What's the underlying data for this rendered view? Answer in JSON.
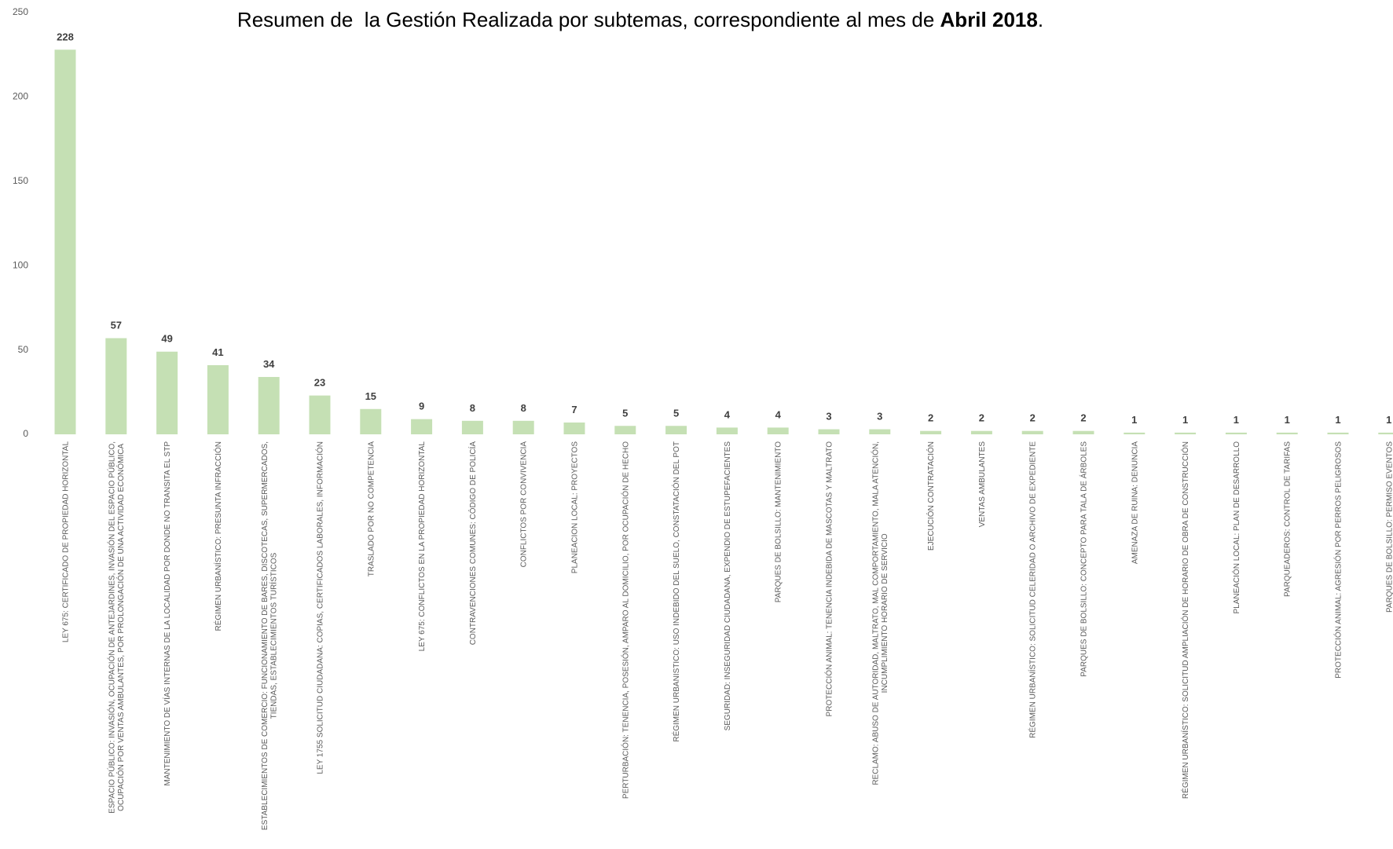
{
  "chart_data": {
    "type": "bar",
    "title": [
      "Resumen de  la Gestión Realizada por subtemas, correspondiente al mes de ",
      "Abril 2018",
      "."
    ],
    "categories": [
      "LEY 675: CERTIFICADO DE PROPIEDAD HORIZONTAL",
      "ESPACIO PÚBLICO: INVASIÓN, OCUPACIÓN DE ANTEJARDINES, INVASIÓN DEL ESPACIO PÚBLICO, OCUPACIÓN POR VENTAS AMBULANTES, POR PROLONGACIÓN DE UNA ACTIVIDAD ECONÓMICA",
      "MANTENIMIENTO DE VÍAS INTERNAS DE LA LOCALIDAD POR DONDE NO TRANSITA EL STP",
      "RÉGIMEN URBANÍSTICO: PRESUNTA INFRACCIÓN",
      "ESTABLECIMIENTOS DE COMERCIO: FUNCIONAMIENTO DE BARES, DISCOTECAS, SUPERMERCADOS, TIENDAS, ESTABLECIMIENTOS TURÍSTICOS",
      "LEY 1755 SOLICITUD CIUDADANA: COPIAS, CERTIFICADOS LABORALES, INFORMACIÓN",
      "TRASLADO POR NO COMPETENCIA",
      "LEY 675: CONFLICTOS EN LA PROPIEDAD HORIZONTAL",
      "CONTRAVENCIONES COMUNES: CÓDIGO DE POLICÍA",
      "CONFLICTOS POR CONVIVENCIA",
      "PLANEACION LOCAL: PROYECTOS",
      "PERTURBACIÓN: TENENCIA, POSESIÓN, AMPARO AL DOMICILIO, POR OCUPACIÓN DE HECHO",
      "RÉGIMEN URBANISTICO: USO INDEBIDO DEL SUELO, CONSTATACIÓN DEL POT",
      "SEGURIDAD: INSEGURIDAD CIUDADANA, EXPENDIO DE ESTUPEFACIENTES",
      "PARQUES DE BOLSILLO: MANTENIMIENTO",
      "PROTECCIÓN ANIMAL: TENENCIA INDEBIDA DE MASCOTAS Y MALTRATO",
      "RECLAMO: ABUSO DE AUTORIDAD, MALTRATO, MAL COMPORTAMIENTO, MALA ATENCIÓN, INCUMPLIMIENTO HORARIO DE SERVICIO",
      "EJECUCIÓN CONTRATACIÓN",
      "VENTAS AMBULANTES",
      "RÉGIMEN URBANÍSTICO: SOLICITUD CELERIDAD O ARCHIVO DE EXPEDIENTE",
      "PARQUES DE BOLSILLO: CONCEPTO PARA TALA DE ÁRBOLES",
      "AMENAZA DE RUINA: DENUNCIA",
      "RÉGIMEN URBANÍSTICO: SOLICITUD AMPLIACIÓN DE HORARIO DE OBRA DE CONSTRUCCIÓN",
      "PLANEACIÓN LOCAL: PLAN DE DESARROLLO",
      "PARQUEADEROS: CONTROL DE TARIFAS",
      "PROTECCIÓN ANIMAL: AGRESIÓN POR PERROS PELIGROSOS",
      "PARQUES DE BOLSILLO: PERMISO EVENTOS"
    ],
    "values": [
      228,
      57,
      49,
      41,
      34,
      23,
      15,
      9,
      8,
      8,
      7,
      5,
      5,
      4,
      4,
      3,
      3,
      2,
      2,
      2,
      2,
      1,
      1,
      1,
      1,
      1,
      1
    ],
    "color": "#c5e0b4",
    "ylim": [
      0,
      250
    ],
    "yticks": [
      0,
      50,
      100,
      150,
      200,
      250
    ],
    "grid": false
  }
}
